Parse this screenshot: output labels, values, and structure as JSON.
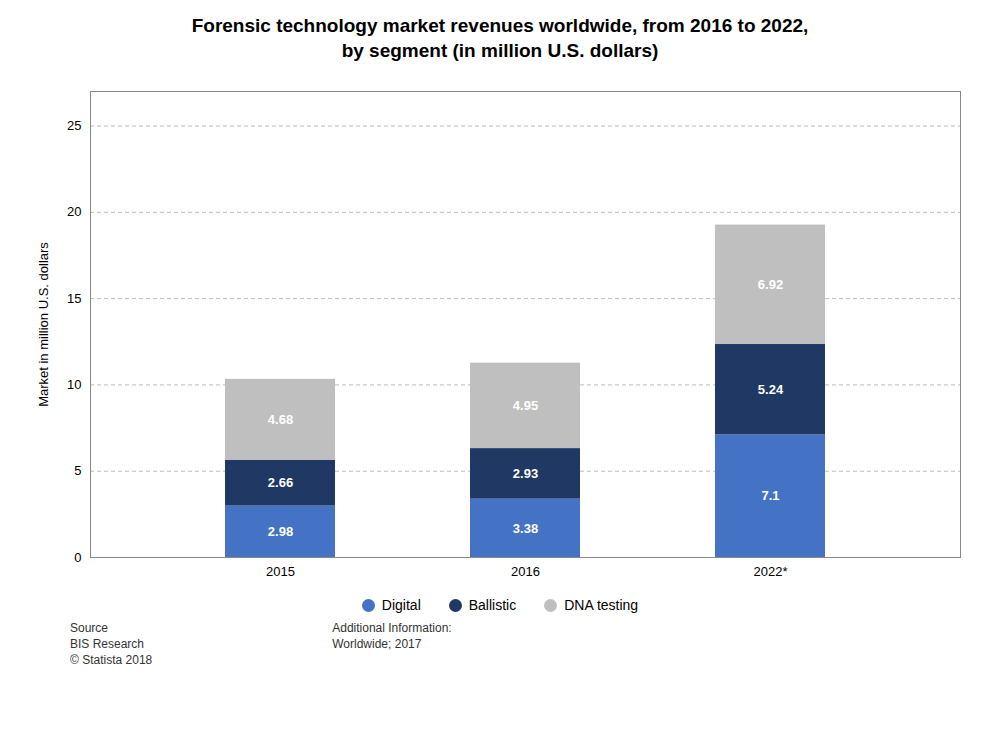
{
  "chart_data": {
    "type": "bar",
    "title": "Forensic technology market revenues worldwide, from 2016 to 2022,\nby segment (in million U.S. dollars)",
    "categories": [
      "2015",
      "2016",
      "2022*"
    ],
    "series": [
      {
        "name": "Digital",
        "color": "#4472C4",
        "values": [
          2.98,
          3.38,
          7.1
        ]
      },
      {
        "name": "Ballistic",
        "color": "#1F3864",
        "values": [
          2.66,
          2.93,
          5.24
        ]
      },
      {
        "name": "DNA testing",
        "color": "#BFBFBF",
        "values": [
          4.68,
          4.95,
          6.92
        ]
      }
    ],
    "ylabel": "Market in million U.S. dollars",
    "ylim": [
      0,
      27
    ],
    "yticks": [
      0,
      5,
      10,
      15,
      20,
      25
    ],
    "stacked": true,
    "data_labels": true,
    "grid": true,
    "legend": "bottom",
    "annotations": [
      "Source\nBIS Research\n© Statista 2018",
      "Additional Information:\nWorldwide; 2017"
    ]
  }
}
